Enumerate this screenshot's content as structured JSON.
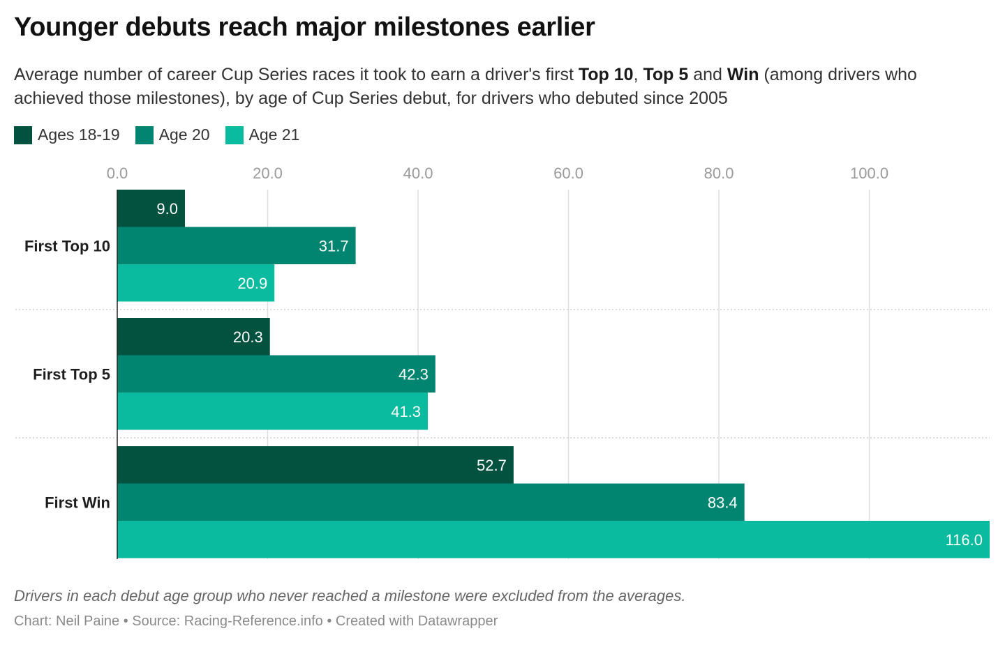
{
  "header": {
    "title": "Younger debuts reach major milestones earlier",
    "subtitle_parts": {
      "p1": "Average number of career Cup Series races it took to earn a driver's first ",
      "b1": "Top 10",
      "p2": ", ",
      "b2": "Top 5",
      "p3": " and ",
      "b3": "Win",
      "p4": " (among drivers who achieved those milestones), by age of Cup Series debut, for drivers who debuted since 2005"
    }
  },
  "legend": [
    {
      "label": "Ages 18-19",
      "color": "#03523f"
    },
    {
      "label": "Age 20",
      "color": "#018570"
    },
    {
      "label": "Age 21",
      "color": "#0bbb9f"
    }
  ],
  "chart_data": {
    "type": "bar",
    "orientation": "horizontal",
    "categories": [
      "First Top 10",
      "First Top 5",
      "First Win"
    ],
    "series": [
      {
        "name": "Ages 18-19",
        "color": "#03523f",
        "values": [
          9.0,
          20.3,
          52.7
        ],
        "labels": [
          "9.0",
          "20.3",
          "52.7"
        ]
      },
      {
        "name": "Age 20",
        "color": "#018570",
        "values": [
          31.7,
          42.3,
          83.4
        ],
        "labels": [
          "31.7",
          "42.3",
          "83.4"
        ]
      },
      {
        "name": "Age 21",
        "color": "#0bbb9f",
        "values": [
          20.9,
          41.3,
          116.0
        ],
        "labels": [
          "20.9",
          "41.3",
          "116.0"
        ]
      }
    ],
    "x_ticks": [
      "0.0",
      "20.0",
      "40.0",
      "60.0",
      "80.0",
      "100.0"
    ],
    "x_tick_values": [
      0,
      20,
      40,
      60,
      80,
      100
    ],
    "xlim": [
      0,
      116
    ],
    "grid": true,
    "legend_position": "top-left"
  },
  "notes": {
    "footnote": "Drivers in each debut age group who never reached a milestone were excluded from the averages.",
    "credit": "Chart: Neil Paine • Source: Racing-Reference.info • Created with Datawrapper"
  }
}
